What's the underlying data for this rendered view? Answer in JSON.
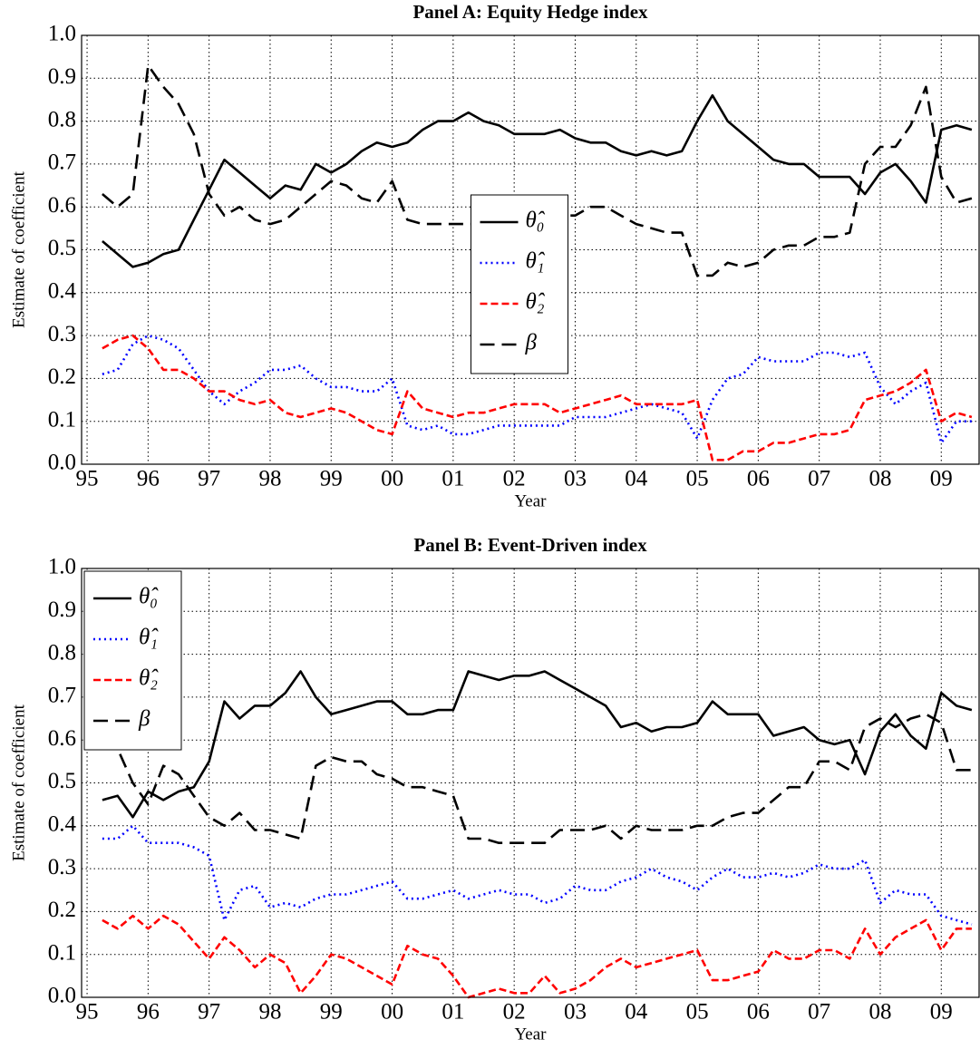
{
  "chart_data": [
    {
      "type": "line",
      "title": "Panel A: Equity Hedge index",
      "xlabel": "Year",
      "ylabel": "Estimate of coefficient",
      "x": [
        1995.25,
        1995.5,
        1995.75,
        1996,
        1996.25,
        1996.5,
        1996.75,
        1997,
        1997.25,
        1997.5,
        1997.75,
        1998,
        1998.25,
        1998.5,
        1998.75,
        1999,
        1999.25,
        1999.5,
        1999.75,
        2000,
        2000.25,
        2000.5,
        2000.75,
        2001,
        2001.25,
        2001.5,
        2001.75,
        2002,
        2002.25,
        2002.5,
        2002.75,
        2003,
        2003.25,
        2003.5,
        2003.75,
        2004,
        2004.25,
        2004.5,
        2004.75,
        2005,
        2005.25,
        2005.5,
        2005.75,
        2006,
        2006.25,
        2006.5,
        2006.75,
        2007,
        2007.25,
        2007.5,
        2007.75,
        2008,
        2008.25,
        2008.5,
        2008.75,
        2009,
        2009.25,
        2009.5
      ],
      "series": [
        {
          "name": "θ̂₀",
          "color": "#000000",
          "style": "solid",
          "values": [
            0.52,
            0.49,
            0.46,
            0.47,
            0.49,
            0.5,
            0.57,
            0.64,
            0.71,
            0.68,
            0.65,
            0.62,
            0.65,
            0.64,
            0.7,
            0.68,
            0.7,
            0.73,
            0.75,
            0.74,
            0.75,
            0.78,
            0.8,
            0.8,
            0.82,
            0.8,
            0.79,
            0.77,
            0.77,
            0.77,
            0.78,
            0.76,
            0.75,
            0.75,
            0.73,
            0.72,
            0.73,
            0.72,
            0.73,
            0.8,
            0.86,
            0.8,
            0.77,
            0.74,
            0.71,
            0.7,
            0.7,
            0.67,
            0.67,
            0.67,
            0.63,
            0.68,
            0.7,
            0.66,
            0.61,
            0.78,
            0.79,
            0.78
          ]
        },
        {
          "name": "θ̂₁",
          "color": "#0000ff",
          "style": "dotted",
          "values": [
            0.21,
            0.22,
            0.28,
            0.3,
            0.29,
            0.27,
            0.22,
            0.17,
            0.14,
            0.17,
            0.19,
            0.22,
            0.22,
            0.23,
            0.2,
            0.18,
            0.18,
            0.17,
            0.17,
            0.2,
            0.09,
            0.08,
            0.09,
            0.07,
            0.07,
            0.08,
            0.09,
            0.09,
            0.09,
            0.09,
            0.09,
            0.11,
            0.11,
            0.11,
            0.12,
            0.13,
            0.14,
            0.13,
            0.12,
            0.06,
            0.15,
            0.2,
            0.21,
            0.25,
            0.24,
            0.24,
            0.24,
            0.26,
            0.26,
            0.25,
            0.26,
            0.18,
            0.14,
            0.17,
            0.19,
            0.05,
            0.1,
            0.1
          ]
        },
        {
          "name": "θ̂₂",
          "color": "#ff0000",
          "style": "dashed",
          "values": [
            0.27,
            0.29,
            0.3,
            0.27,
            0.22,
            0.22,
            0.2,
            0.17,
            0.17,
            0.15,
            0.14,
            0.15,
            0.12,
            0.11,
            0.12,
            0.13,
            0.12,
            0.1,
            0.08,
            0.07,
            0.17,
            0.13,
            0.12,
            0.11,
            0.12,
            0.12,
            0.13,
            0.14,
            0.14,
            0.14,
            0.12,
            0.13,
            0.14,
            0.15,
            0.16,
            0.14,
            0.14,
            0.14,
            0.14,
            0.15,
            0.01,
            0.01,
            0.03,
            0.03,
            0.05,
            0.05,
            0.06,
            0.07,
            0.07,
            0.08,
            0.15,
            0.16,
            0.17,
            0.19,
            0.22,
            0.1,
            0.12,
            0.11
          ]
        },
        {
          "name": "β",
          "color": "#000000",
          "style": "longdash",
          "values": [
            0.63,
            0.6,
            0.63,
            0.93,
            0.88,
            0.84,
            0.77,
            0.63,
            0.58,
            0.6,
            0.57,
            0.56,
            0.57,
            0.6,
            0.63,
            0.66,
            0.65,
            0.62,
            0.61,
            0.66,
            0.57,
            0.56,
            0.56,
            0.56,
            0.56,
            0.56,
            0.58,
            0.59,
            0.6,
            0.61,
            0.58,
            0.58,
            0.6,
            0.6,
            0.58,
            0.56,
            0.55,
            0.54,
            0.54,
            0.44,
            0.44,
            0.47,
            0.46,
            0.47,
            0.5,
            0.51,
            0.51,
            0.53,
            0.53,
            0.54,
            0.7,
            0.74,
            0.74,
            0.79,
            0.88,
            0.67,
            0.61,
            0.62
          ]
        }
      ],
      "xlim": [
        1994.91,
        2009.62
      ],
      "xticks": [
        {
          "value": 1995,
          "label": "95"
        },
        {
          "value": 1996,
          "label": "96"
        },
        {
          "value": 1997,
          "label": "97"
        },
        {
          "value": 1998,
          "label": "98"
        },
        {
          "value": 1999,
          "label": "99"
        },
        {
          "value": 2000,
          "label": "00"
        },
        {
          "value": 2001,
          "label": "01"
        },
        {
          "value": 2002,
          "label": "02"
        },
        {
          "value": 2003,
          "label": "03"
        },
        {
          "value": 2004,
          "label": "04"
        },
        {
          "value": 2005,
          "label": "05"
        },
        {
          "value": 2006,
          "label": "06"
        },
        {
          "value": 2007,
          "label": "07"
        },
        {
          "value": 2008,
          "label": "08"
        },
        {
          "value": 2009,
          "label": "09"
        }
      ],
      "ylim": [
        0,
        1
      ],
      "yticks": [
        {
          "value": 0,
          "label": "0.0"
        },
        0.1,
        0.2,
        0.3,
        0.4,
        0.5,
        0.6,
        0.7,
        0.8,
        0.9,
        {
          "value": 1,
          "label": "1.0"
        }
      ],
      "grid": true,
      "legend": "center"
    },
    {
      "type": "line",
      "title": "Panel B: Event-Driven index",
      "xlabel": "Year",
      "ylabel": "Estimate of coefficient",
      "x": [
        1995.25,
        1995.5,
        1995.75,
        1996,
        1996.25,
        1996.5,
        1996.75,
        1997,
        1997.25,
        1997.5,
        1997.75,
        1998,
        1998.25,
        1998.5,
        1998.75,
        1999,
        1999.25,
        1999.5,
        1999.75,
        2000,
        2000.25,
        2000.5,
        2000.75,
        2001,
        2001.25,
        2001.5,
        2001.75,
        2002,
        2002.25,
        2002.5,
        2002.75,
        2003,
        2003.25,
        2003.5,
        2003.75,
        2004,
        2004.25,
        2004.5,
        2004.75,
        2005,
        2005.25,
        2005.5,
        2005.75,
        2006,
        2006.25,
        2006.5,
        2006.75,
        2007,
        2007.25,
        2007.5,
        2007.75,
        2008,
        2008.25,
        2008.5,
        2008.75,
        2009,
        2009.25,
        2009.5
      ],
      "series": [
        {
          "name": "θ̂₀",
          "color": "#000000",
          "style": "solid",
          "values": [
            0.46,
            0.47,
            0.42,
            0.48,
            0.46,
            0.48,
            0.49,
            0.55,
            0.69,
            0.65,
            0.68,
            0.68,
            0.71,
            0.76,
            0.7,
            0.66,
            0.67,
            0.68,
            0.69,
            0.69,
            0.66,
            0.66,
            0.67,
            0.67,
            0.76,
            0.75,
            0.74,
            0.75,
            0.75,
            0.76,
            0.74,
            0.72,
            0.7,
            0.68,
            0.63,
            0.64,
            0.62,
            0.63,
            0.63,
            0.64,
            0.69,
            0.66,
            0.66,
            0.66,
            0.61,
            0.62,
            0.63,
            0.6,
            0.59,
            0.6,
            0.52,
            0.62,
            0.66,
            0.61,
            0.58,
            0.71,
            0.68,
            0.67
          ]
        },
        {
          "name": "θ̂₁",
          "color": "#0000ff",
          "style": "dotted",
          "values": [
            0.37,
            0.37,
            0.4,
            0.36,
            0.36,
            0.36,
            0.35,
            0.33,
            0.18,
            0.25,
            0.26,
            0.21,
            0.22,
            0.21,
            0.23,
            0.24,
            0.24,
            0.25,
            0.26,
            0.27,
            0.23,
            0.23,
            0.24,
            0.25,
            0.23,
            0.24,
            0.25,
            0.24,
            0.24,
            0.22,
            0.23,
            0.26,
            0.25,
            0.25,
            0.27,
            0.28,
            0.3,
            0.28,
            0.27,
            0.25,
            0.28,
            0.3,
            0.28,
            0.28,
            0.29,
            0.28,
            0.29,
            0.31,
            0.3,
            0.3,
            0.32,
            0.22,
            0.25,
            0.24,
            0.24,
            0.19,
            0.18,
            0.17
          ]
        },
        {
          "name": "θ̂₂",
          "color": "#ff0000",
          "style": "dashed",
          "values": [
            0.18,
            0.16,
            0.19,
            0.16,
            0.19,
            0.17,
            0.13,
            0.09,
            0.14,
            0.11,
            0.07,
            0.1,
            0.08,
            0.01,
            0.05,
            0.1,
            0.09,
            0.07,
            0.05,
            0.03,
            0.12,
            0.1,
            0.09,
            0.05,
            0.0,
            0.01,
            0.02,
            0.01,
            0.01,
            0.05,
            0.01,
            0.02,
            0.04,
            0.07,
            0.09,
            0.07,
            0.08,
            0.09,
            0.1,
            0.11,
            0.04,
            0.04,
            0.05,
            0.06,
            0.11,
            0.09,
            0.09,
            0.11,
            0.11,
            0.09,
            0.16,
            0.1,
            0.14,
            0.16,
            0.18,
            0.11,
            0.16,
            0.16
          ]
        },
        {
          "name": "β",
          "color": "#000000",
          "style": "longdash",
          "values": [
            0.59,
            0.58,
            0.5,
            0.45,
            0.54,
            0.52,
            0.47,
            0.42,
            0.4,
            0.43,
            0.39,
            0.39,
            0.38,
            0.37,
            0.54,
            0.56,
            0.55,
            0.55,
            0.52,
            0.51,
            0.49,
            0.49,
            0.48,
            0.47,
            0.37,
            0.37,
            0.36,
            0.36,
            0.36,
            0.36,
            0.39,
            0.39,
            0.39,
            0.4,
            0.37,
            0.4,
            0.39,
            0.39,
            0.39,
            0.4,
            0.4,
            0.42,
            0.43,
            0.43,
            0.46,
            0.49,
            0.49,
            0.55,
            0.55,
            0.53,
            0.63,
            0.65,
            0.63,
            0.65,
            0.66,
            0.64,
            0.53,
            0.53
          ]
        }
      ],
      "xlim": [
        1994.91,
        2009.62
      ],
      "xticks": [
        {
          "value": 1995,
          "label": "95"
        },
        {
          "value": 1996,
          "label": "96"
        },
        {
          "value": 1997,
          "label": "97"
        },
        {
          "value": 1998,
          "label": "98"
        },
        {
          "value": 1999,
          "label": "99"
        },
        {
          "value": 2000,
          "label": "00"
        },
        {
          "value": 2001,
          "label": "01"
        },
        {
          "value": 2002,
          "label": "02"
        },
        {
          "value": 2003,
          "label": "03"
        },
        {
          "value": 2004,
          "label": "04"
        },
        {
          "value": 2005,
          "label": "05"
        },
        {
          "value": 2006,
          "label": "06"
        },
        {
          "value": 2007,
          "label": "07"
        },
        {
          "value": 2008,
          "label": "08"
        },
        {
          "value": 2009,
          "label": "09"
        }
      ],
      "ylim": [
        0,
        1
      ],
      "yticks": [
        {
          "value": 0,
          "label": "0.0"
        },
        0.1,
        0.2,
        0.3,
        0.4,
        0.5,
        0.6,
        0.7,
        0.8,
        0.9,
        {
          "value": 1,
          "label": "1.0"
        }
      ],
      "grid": true,
      "legend": "upper left"
    }
  ]
}
